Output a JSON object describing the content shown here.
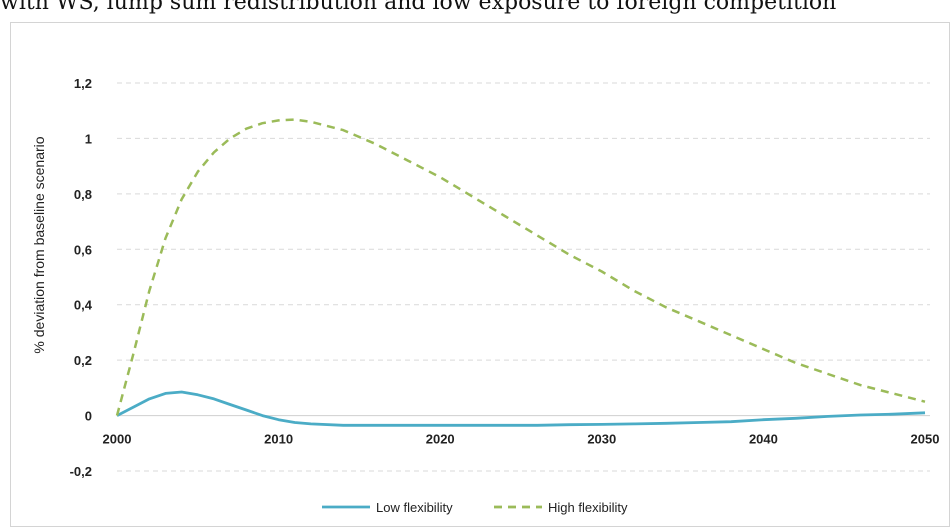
{
  "caption": "with WS, lump sum redistribution and low exposure to foreign competition",
  "chart_data": {
    "type": "line",
    "title": "",
    "xlabel": "",
    "ylabel": "% deviation from baseline scenario",
    "xlim": [
      2000,
      2050
    ],
    "ylim": [
      -0.2,
      1.2
    ],
    "x_ticks": [
      "2000",
      "2010",
      "2020",
      "2030",
      "2040",
      "2050"
    ],
    "y_ticks": [
      "-0,2",
      "0",
      "0,2",
      "0,4",
      "0,6",
      "0,8",
      "1",
      "1,2"
    ],
    "grid": "horizontal dashed",
    "legend_position": "bottom",
    "x": [
      2000,
      2001,
      2002,
      2003,
      2004,
      2005,
      2006,
      2007,
      2008,
      2009,
      2010,
      2011,
      2012,
      2014,
      2016,
      2018,
      2020,
      2022,
      2024,
      2026,
      2028,
      2030,
      2032,
      2034,
      2036,
      2038,
      2040,
      2042,
      2044,
      2046,
      2048,
      2050
    ],
    "series": [
      {
        "name": "Low flexibility",
        "color": "#4bacc6",
        "style": "solid",
        "values": [
          0.0,
          0.03,
          0.06,
          0.08,
          0.085,
          0.075,
          0.06,
          0.04,
          0.02,
          0.0,
          -0.015,
          -0.025,
          -0.03,
          -0.035,
          -0.035,
          -0.035,
          -0.035,
          -0.035,
          -0.035,
          -0.035,
          -0.033,
          -0.032,
          -0.03,
          -0.028,
          -0.025,
          -0.022,
          -0.015,
          -0.01,
          -0.003,
          0.002,
          0.005,
          0.01
        ]
      },
      {
        "name": "High flexibility",
        "color": "#9bbb59",
        "style": "dashed",
        "values": [
          0.0,
          0.22,
          0.45,
          0.64,
          0.78,
          0.88,
          0.95,
          1.0,
          1.035,
          1.055,
          1.065,
          1.068,
          1.06,
          1.03,
          0.98,
          0.92,
          0.86,
          0.79,
          0.72,
          0.65,
          0.58,
          0.52,
          0.45,
          0.39,
          0.34,
          0.29,
          0.24,
          0.19,
          0.15,
          0.11,
          0.08,
          0.05
        ]
      }
    ]
  }
}
